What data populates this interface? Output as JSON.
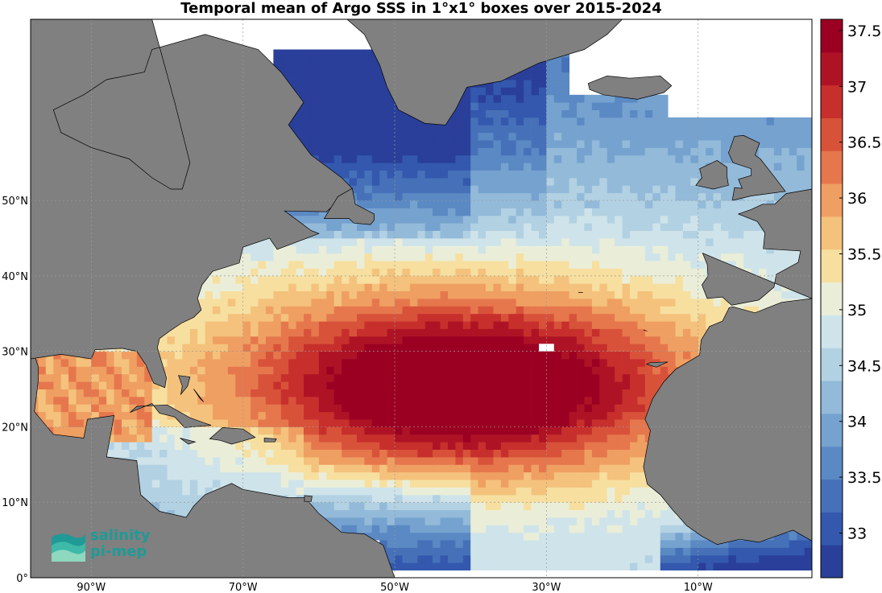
{
  "title": "Temporal mean of Argo SSS in 1°x1° boxes over 2015-2024",
  "map": {
    "lon_range": [
      -98,
      5
    ],
    "lat_range": [
      0,
      74
    ],
    "lon_ticks": [
      {
        "value": -90,
        "label": "90°W"
      },
      {
        "value": -70,
        "label": "70°W"
      },
      {
        "value": -50,
        "label": "50°W"
      },
      {
        "value": -30,
        "label": "30°W"
      },
      {
        "value": -10,
        "label": "10°W"
      }
    ],
    "lat_ticks": [
      {
        "value": 0,
        "label": "0°"
      },
      {
        "value": 10,
        "label": "10°N"
      },
      {
        "value": 20,
        "label": "20°N"
      },
      {
        "value": 30,
        "label": "30°N"
      },
      {
        "value": 40,
        "label": "40°N"
      },
      {
        "value": 50,
        "label": "50°N"
      }
    ],
    "land_color": "#808080",
    "ocean_nodata_color": "#ffffff",
    "grid": true
  },
  "colorbar": {
    "min": 32.6,
    "max": 37.6,
    "ticks": [
      "33",
      "33.5",
      "34",
      "34.5",
      "35",
      "35.5",
      "36",
      "36.5",
      "37",
      "37.5"
    ],
    "colors": [
      "#2a3f99",
      "#3358ad",
      "#4671b8",
      "#5a89c3",
      "#76a2cf",
      "#93bad9",
      "#b2d1e3",
      "#cfe4ea",
      "#eaeed8",
      "#f7dfa0",
      "#f4c27c",
      "#ef9f62",
      "#e6774d",
      "#d8523a",
      "#c72f2c",
      "#ae1325",
      "#9b0023"
    ]
  },
  "logo": {
    "line1": "salinity",
    "line2": "pi-mep",
    "color": "#1f9a96"
  }
}
